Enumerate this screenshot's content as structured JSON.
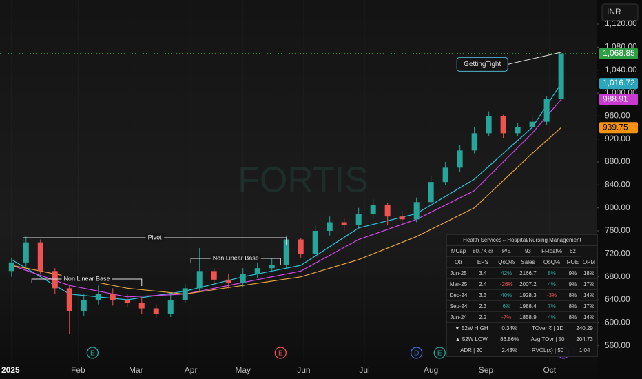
{
  "chart_data": {
    "type": "candlestick",
    "watermark": "FORTIS",
    "currency": "INR",
    "xlim": [
      -4,
      202
    ],
    "ylim": [
      502,
      1162
    ],
    "xticks": [
      {
        "value": 0,
        "label": "2025"
      },
      {
        "value": 23,
        "label": "Feb"
      },
      {
        "value": 43,
        "label": "Mar"
      },
      {
        "value": 62,
        "label": "Apr"
      },
      {
        "value": 80,
        "label": "May"
      },
      {
        "value": 101,
        "label": "Jun"
      },
      {
        "value": 122,
        "label": "Jul"
      },
      {
        "value": 145,
        "label": "Aug"
      },
      {
        "value": 164,
        "label": "Sep"
      },
      {
        "value": 186,
        "label": "Oct"
      }
    ],
    "yticks": [
      {
        "value": 560,
        "label": "560.00"
      },
      {
        "value": 600,
        "label": "600.00"
      },
      {
        "value": 640,
        "label": "640.00"
      },
      {
        "value": 680,
        "label": "680.00"
      },
      {
        "value": 720,
        "label": "720.00"
      },
      {
        "value": 760,
        "label": "760.00"
      },
      {
        "value": 800,
        "label": "800.00"
      },
      {
        "value": 840,
        "label": "840.00"
      },
      {
        "value": 880,
        "label": "880.00"
      },
      {
        "value": 920,
        "label": "920.00"
      },
      {
        "value": 960,
        "label": "960.00"
      },
      {
        "value": 1000,
        "label": "1,000.00"
      },
      {
        "value": 1040,
        "label": "1,040.00"
      },
      {
        "value": 1080,
        "label": "1,080.00"
      },
      {
        "value": 1120,
        "label": "1,120.00"
      }
    ],
    "up_color": "#26a69a",
    "down_color": "#ef5350",
    "candles": {
      "x": [
        0,
        5,
        10,
        15,
        20,
        25,
        30,
        35,
        40,
        45,
        50,
        55,
        60,
        65,
        70,
        75,
        80,
        85,
        90,
        95,
        100,
        105,
        110,
        115,
        120,
        125,
        130,
        135,
        140,
        145,
        150,
        155,
        160,
        165,
        170,
        175,
        180,
        185,
        190
      ],
      "open": [
        690,
        705,
        740,
        690,
        660,
        620,
        640,
        650,
        640,
        635,
        625,
        615,
        640,
        660,
        690,
        675,
        670,
        685,
        695,
        700,
        745,
        720,
        760,
        775,
        770,
        790,
        805,
        785,
        780,
        810,
        845,
        870,
        900,
        930,
        960,
        930,
        940,
        950,
        990
      ],
      "high": [
        712,
        750,
        745,
        695,
        665,
        650,
        665,
        660,
        650,
        645,
        632,
        650,
        668,
        730,
        695,
        685,
        695,
        705,
        712,
        752,
        748,
        770,
        785,
        782,
        800,
        815,
        808,
        795,
        818,
        855,
        880,
        910,
        940,
        968,
        962,
        948,
        960,
        995,
        1072
      ],
      "low": [
        680,
        698,
        685,
        650,
        580,
        612,
        632,
        630,
        628,
        615,
        608,
        610,
        635,
        655,
        665,
        660,
        662,
        678,
        690,
        695,
        712,
        715,
        752,
        760,
        765,
        782,
        770,
        772,
        775,
        805,
        840,
        862,
        895,
        925,
        922,
        925,
        932,
        945,
        985
      ],
      "close": [
        705,
        740,
        690,
        660,
        620,
        640,
        650,
        640,
        635,
        625,
        615,
        640,
        660,
        690,
        675,
        670,
        685,
        695,
        700,
        745,
        720,
        760,
        775,
        770,
        790,
        805,
        785,
        780,
        810,
        845,
        870,
        900,
        930,
        960,
        930,
        940,
        950,
        990,
        1068.85
      ]
    },
    "series": [
      {
        "color": "#26c6da",
        "x": [
          0,
          20,
          40,
          60,
          80,
          100,
          120,
          140,
          160,
          180,
          190
        ],
        "values": [
          710,
          650,
          640,
          655,
          680,
          700,
          765,
          790,
          850,
          940,
          1016.72
        ]
      },
      {
        "color": "#d946ef",
        "x": [
          0,
          20,
          40,
          60,
          80,
          100,
          120,
          140,
          160,
          180,
          190
        ],
        "values": [
          700,
          665,
          645,
          650,
          670,
          690,
          745,
          780,
          830,
          930,
          988.91
        ]
      },
      {
        "color": "#e8a33c",
        "x": [
          0,
          20,
          40,
          60,
          80,
          100,
          120,
          140,
          160,
          180,
          190
        ],
        "values": [
          700,
          680,
          660,
          650,
          665,
          680,
          710,
          750,
          800,
          895,
          939.75
        ]
      }
    ],
    "price_tags": [
      {
        "value": 1068.85,
        "label": "1,068.85",
        "color": "#2e9e44",
        "text_color": "#ffffff"
      },
      {
        "value": 1016.72,
        "label": "1,016.72",
        "color": "#2aa7bd",
        "text_color": "#ffffff"
      },
      {
        "value": 988.91,
        "label": "988.91",
        "color": "#c83ad0",
        "text_color": "#ffffff"
      },
      {
        "value": 939.75,
        "label": "939.75",
        "color": "#f5930f",
        "text_color": "#000000"
      }
    ],
    "annotations": [
      {
        "text": "Pivot",
        "x": [
          4,
          95
        ],
        "y": 748
      },
      {
        "text": "Non Linear Base",
        "x": [
          7,
          45
        ],
        "y": 676
      },
      {
        "text": "Non Linear Base",
        "x": [
          62,
          93
        ],
        "y": 712
      }
    ],
    "callout": {
      "text": "GettingTight",
      "x": 163,
      "y": 1050,
      "to_x": 190,
      "to_y": 1071
    },
    "events": [
      {
        "label": "E",
        "x": 28,
        "color": "#26a69a"
      },
      {
        "label": "E",
        "x": 93,
        "color": "#ef5350"
      },
      {
        "label": "D",
        "x": 140,
        "color": "#3f6fe0"
      },
      {
        "label": "E",
        "x": 148,
        "color": "#26a69a"
      }
    ]
  },
  "panel": {
    "title": "Health Services⇔Hospital/Nursing Management",
    "summary": [
      "MCap",
      "80.7K cr",
      "P/E",
      "93",
      "FFloat%",
      "62"
    ],
    "header": [
      "Qtr",
      "EPS",
      "QoQ%",
      "Sales",
      "QoQ%",
      "ROE",
      "OPM"
    ],
    "rows": [
      [
        "Jun-25",
        "3.4",
        "42%",
        "2166.7",
        "8%",
        "9%",
        "18%"
      ],
      [
        "Mar-25",
        "2.4",
        "-26%",
        "2007.2",
        "4%",
        "9%",
        "17%"
      ],
      [
        "Dec-24",
        "3.3",
        "40%",
        "1928.3",
        "-3%",
        "8%",
        "14%"
      ],
      [
        "Sep-24",
        "2.3",
        "6%",
        "1988.4",
        "7%",
        "8%",
        "17%"
      ],
      [
        "Jun-24",
        "2.2",
        "-7%",
        "1858.9",
        "4%",
        "8%",
        "14%"
      ]
    ],
    "stats": [
      [
        "▼ 52W HIGH",
        "0.34%",
        "TOver ₹ | 1D",
        "240.29"
      ],
      [
        "▲ 52W LOW",
        "86.86%",
        "Avg TOvr | 50",
        "204.73"
      ],
      [
        "ADR | 20",
        "2.43%",
        "RVOL(x) | 50",
        "1.04"
      ]
    ]
  }
}
